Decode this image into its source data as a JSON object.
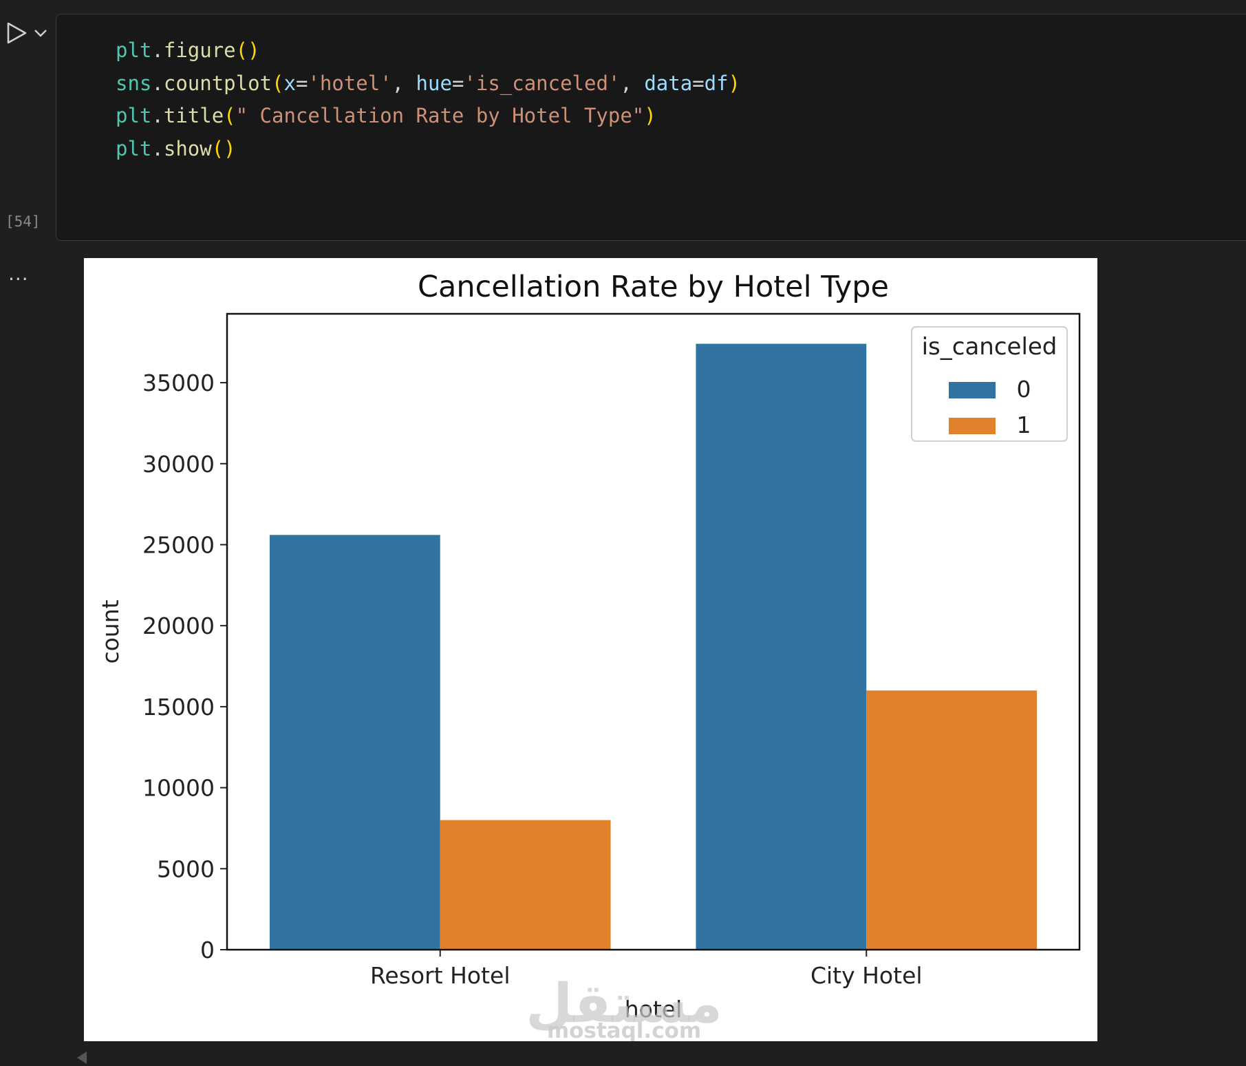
{
  "cell": {
    "execution_count": "[54]",
    "more_label": "...",
    "code_lines": [
      [
        {
          "t": "plt",
          "c": "fn"
        },
        {
          "t": ".",
          "c": "pl"
        },
        {
          "t": "figure",
          "c": "call"
        },
        {
          "t": "()",
          "c": "par"
        }
      ],
      [
        {
          "t": "sns",
          "c": "fn"
        },
        {
          "t": ".",
          "c": "pl"
        },
        {
          "t": "countplot",
          "c": "call"
        },
        {
          "t": "(",
          "c": "par"
        },
        {
          "t": "x",
          "c": "prm"
        },
        {
          "t": "=",
          "c": "pl"
        },
        {
          "t": "'hotel'",
          "c": "str"
        },
        {
          "t": ", ",
          "c": "pl"
        },
        {
          "t": "hue",
          "c": "prm"
        },
        {
          "t": "=",
          "c": "pl"
        },
        {
          "t": "'is_canceled'",
          "c": "str"
        },
        {
          "t": ", ",
          "c": "pl"
        },
        {
          "t": "data",
          "c": "prm"
        },
        {
          "t": "=",
          "c": "pl"
        },
        {
          "t": "df",
          "c": "prm"
        },
        {
          "t": ")",
          "c": "par"
        }
      ],
      [
        {
          "t": "plt",
          "c": "fn"
        },
        {
          "t": ".",
          "c": "pl"
        },
        {
          "t": "title",
          "c": "call"
        },
        {
          "t": "(",
          "c": "par"
        },
        {
          "t": "\" Cancellation Rate by Hotel Type\"",
          "c": "str"
        },
        {
          "t": ")",
          "c": "par"
        }
      ],
      [
        {
          "t": "plt",
          "c": "fn"
        },
        {
          "t": ".",
          "c": "pl"
        },
        {
          "t": "show",
          "c": "call"
        },
        {
          "t": "()",
          "c": "par"
        }
      ]
    ]
  },
  "chart_data": {
    "type": "bar",
    "title": "Cancellation Rate by Hotel Type",
    "xlabel": "hotel",
    "ylabel": "count",
    "categories": [
      "Resort Hotel",
      "City Hotel"
    ],
    "series": [
      {
        "name": "0",
        "values": [
          25600,
          37400
        ],
        "color": "#3274a1"
      },
      {
        "name": "1",
        "values": [
          8000,
          16000
        ],
        "color": "#e1812c"
      }
    ],
    "ylim": [
      0,
      39250
    ],
    "yticks": [
      0,
      5000,
      10000,
      15000,
      20000,
      25000,
      30000,
      35000
    ],
    "legend": {
      "title": "is_canceled",
      "position": "top-right"
    },
    "grid": false
  },
  "watermark": {
    "arabic": "مستقل",
    "latin": "mostaql.com"
  },
  "icons": {
    "run": "play-icon",
    "run_menu": "chevron-down-icon",
    "more": "ellipsis-icon"
  }
}
